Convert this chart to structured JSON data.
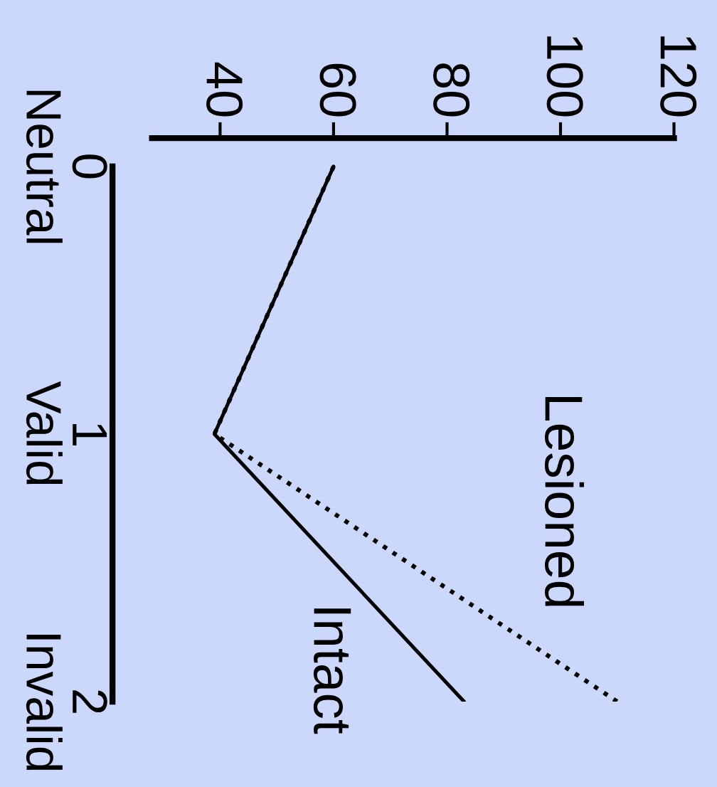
{
  "chart_data": {
    "type": "line",
    "orientation": "horizontal",
    "categories": [
      "0\nNeutral",
      "1\nValid",
      "2\nInvalid"
    ],
    "series": [
      {
        "name": "Intact",
        "color": "#000000",
        "line_style": "solid",
        "values": [
          60,
          39,
          83
        ]
      },
      {
        "name": "Lesioned",
        "color": "#000000",
        "line_style": "dotted",
        "values": [
          60,
          39,
          110
        ]
      }
    ],
    "xlim": [
      28,
      120
    ],
    "xticks": [
      40,
      60,
      80,
      100,
      120
    ],
    "grid": false,
    "legend": false,
    "marker": "none"
  }
}
